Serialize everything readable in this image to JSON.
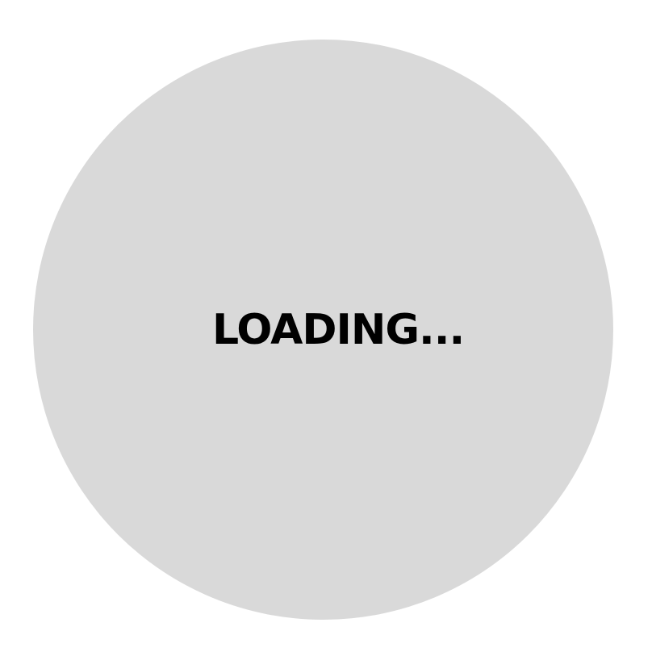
{
  "loader": {
    "text": "LOADING...",
    "circle_color": "#d9d9d9",
    "text_color": "#000000",
    "background_color": "#ffffff"
  }
}
